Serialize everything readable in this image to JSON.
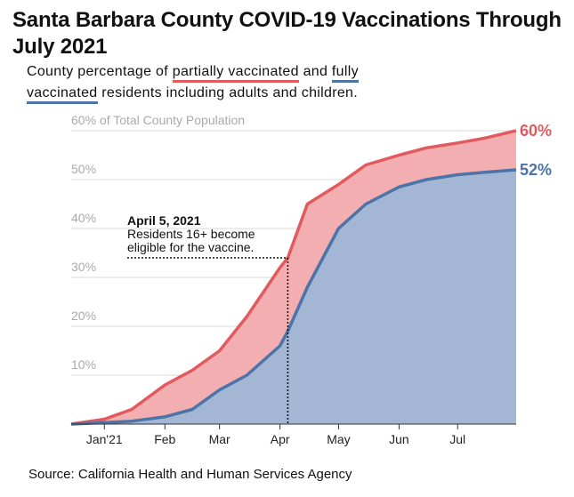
{
  "title": "Santa Barbara County COVID-19 Vaccinations Through July 2021",
  "subtitle": {
    "pre": "County percentage of ",
    "partial": "partially vaccinated",
    "mid": " and ",
    "fully_a": "fully",
    "fully_b": "vaccinated",
    "post": " residents including adults and children."
  },
  "source": "Source: California Health and Human Services Agency",
  "colors": {
    "partial_line": "#e25a5f",
    "partial_fill": "#f2aeb0",
    "full_line": "#4c74a8",
    "full_fill": "#a3b6d3",
    "grid": "#d9d9d9",
    "tick_text": "#aaaaaa"
  },
  "chart_data": {
    "type": "area",
    "title": "Santa Barbara County COVID-19 Vaccinations Through July 2021",
    "xlabel": "",
    "ylabel": "",
    "ylim": [
      0,
      60
    ],
    "grid": true,
    "x_ticks": [
      "Jan'21",
      "Feb",
      "Mar",
      "Apr",
      "May",
      "Jun",
      "Jul"
    ],
    "y_ticks": [
      "10%",
      "20%",
      "30%",
      "40%",
      "50%",
      "60% of Total County Population"
    ],
    "y_tick_values": [
      10,
      20,
      30,
      40,
      50,
      60
    ],
    "x": [
      "2020-12-15",
      "2021-01-01",
      "2021-01-15",
      "2021-02-01",
      "2021-02-15",
      "2021-03-01",
      "2021-03-15",
      "2021-04-01",
      "2021-04-05",
      "2021-04-15",
      "2021-05-01",
      "2021-05-15",
      "2021-06-01",
      "2021-06-15",
      "2021-07-01",
      "2021-07-15",
      "2021-07-31"
    ],
    "series": [
      {
        "name": "partially vaccinated",
        "values": [
          0,
          1,
          3,
          8,
          11,
          15,
          22,
          32,
          34,
          45,
          49,
          53,
          55,
          56.5,
          57.5,
          58.5,
          60
        ],
        "end_label": "60%"
      },
      {
        "name": "fully vaccinated",
        "values": [
          0,
          0.3,
          0.6,
          1.5,
          3,
          7,
          10,
          16,
          19,
          28,
          40,
          45,
          48.5,
          50,
          51,
          51.5,
          52
        ],
        "end_label": "52%"
      }
    ],
    "annotations": [
      {
        "x": "2021-04-05",
        "y": 34,
        "title": "April 5, 2021",
        "text": [
          "Residents 16+ become",
          "eligible for the vaccine."
        ]
      }
    ]
  }
}
